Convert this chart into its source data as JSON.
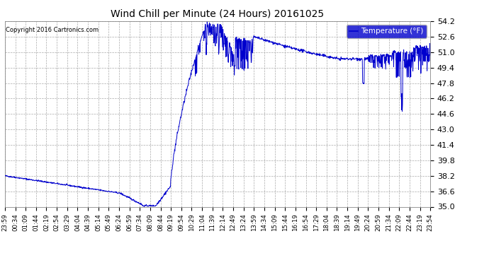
{
  "title": "Wind Chill per Minute (24 Hours) 20161025",
  "copyright_text": "Copyright 2016 Cartronics.com",
  "legend_label": "Temperature (°F)",
  "line_color": "#0000CD",
  "bg_color": "#ffffff",
  "grid_color": "#aaaaaa",
  "ylim": [
    35.0,
    54.2
  ],
  "yticks": [
    35.0,
    36.6,
    38.2,
    39.8,
    41.4,
    43.0,
    44.6,
    46.2,
    47.8,
    49.4,
    51.0,
    52.6,
    54.2
  ],
  "xtick_labels": [
    "23:59",
    "00:34",
    "01:09",
    "01:44",
    "02:19",
    "02:54",
    "03:29",
    "04:04",
    "04:39",
    "05:14",
    "05:49",
    "06:24",
    "06:59",
    "07:34",
    "08:09",
    "08:44",
    "09:19",
    "09:54",
    "10:29",
    "11:04",
    "11:39",
    "12:14",
    "12:49",
    "13:24",
    "13:59",
    "14:34",
    "15:09",
    "15:44",
    "16:19",
    "16:54",
    "17:29",
    "18:04",
    "18:39",
    "19:14",
    "19:49",
    "20:24",
    "20:59",
    "21:34",
    "22:09",
    "22:44",
    "23:19",
    "23:54"
  ],
  "num_points": 1440,
  "legend_facecolor": "#0000CC",
  "legend_textcolor": "#ffffff"
}
